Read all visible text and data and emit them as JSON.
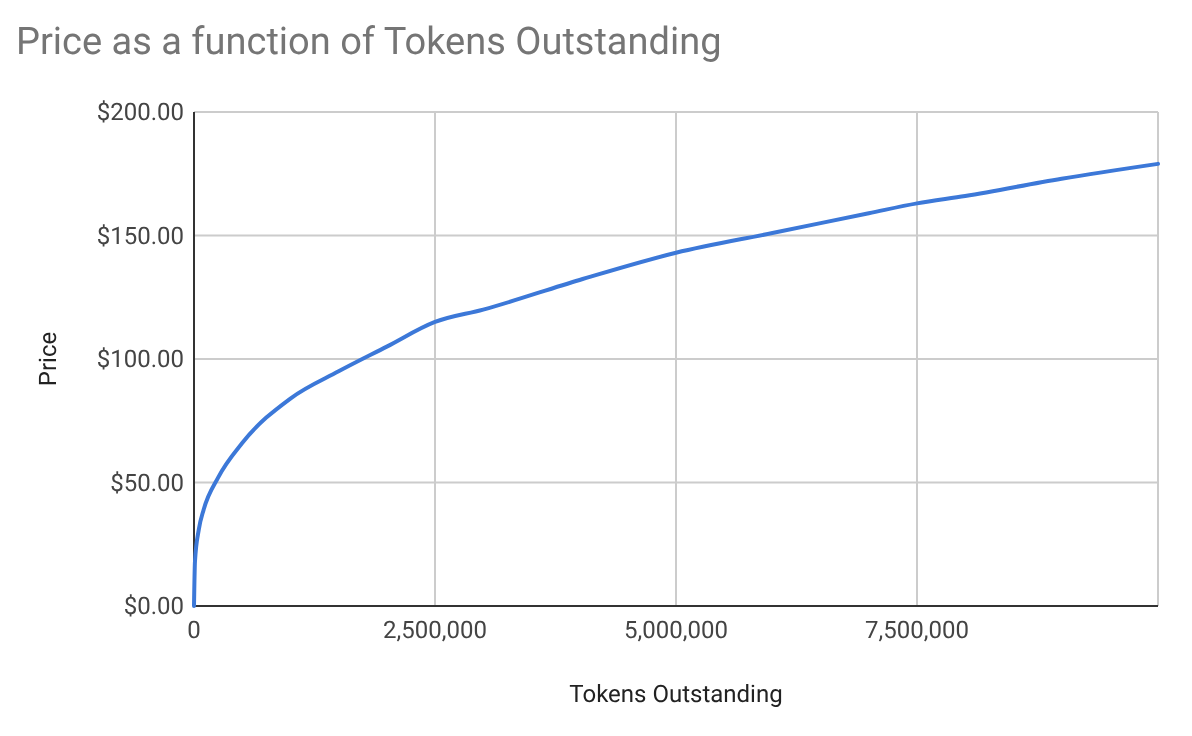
{
  "chart_data": {
    "type": "line",
    "title": "Price as a function of Tokens Outstanding",
    "xlabel": "Tokens Outstanding",
    "ylabel": "Price",
    "x": [
      0,
      10000,
      50000,
      100000,
      250000,
      500000,
      1000000,
      1500000,
      2000000,
      2500000,
      3000000,
      4000000,
      5000000,
      6000000,
      7000000,
      7500000,
      8000000,
      9000000,
      10000000
    ],
    "series": [
      {
        "color": "#3c78d8",
        "values": [
          0,
          18,
          31,
          39,
          52,
          66,
          84,
          95,
          105,
          115,
          120,
          132,
          143,
          151,
          159,
          163,
          166,
          173,
          179
        ]
      }
    ],
    "xlim": [
      0,
      10000000
    ],
    "xticks": [
      {
        "value": 0,
        "label": "0"
      },
      {
        "value": 2500000,
        "label": "2,500,000"
      },
      {
        "value": 5000000,
        "label": "5,000,000"
      },
      {
        "value": 7500000,
        "label": "7,500,000"
      }
    ],
    "ylim": [
      0,
      200
    ],
    "yticks": [
      {
        "value": 0,
        "label": "$0.00"
      },
      {
        "value": 50,
        "label": "$50.00"
      },
      {
        "value": 100,
        "label": "$100.00"
      },
      {
        "value": 150,
        "label": "$150.00"
      },
      {
        "value": 200,
        "label": "$200.00"
      }
    ],
    "grid": true,
    "marker": "none",
    "line_style": "solid"
  }
}
